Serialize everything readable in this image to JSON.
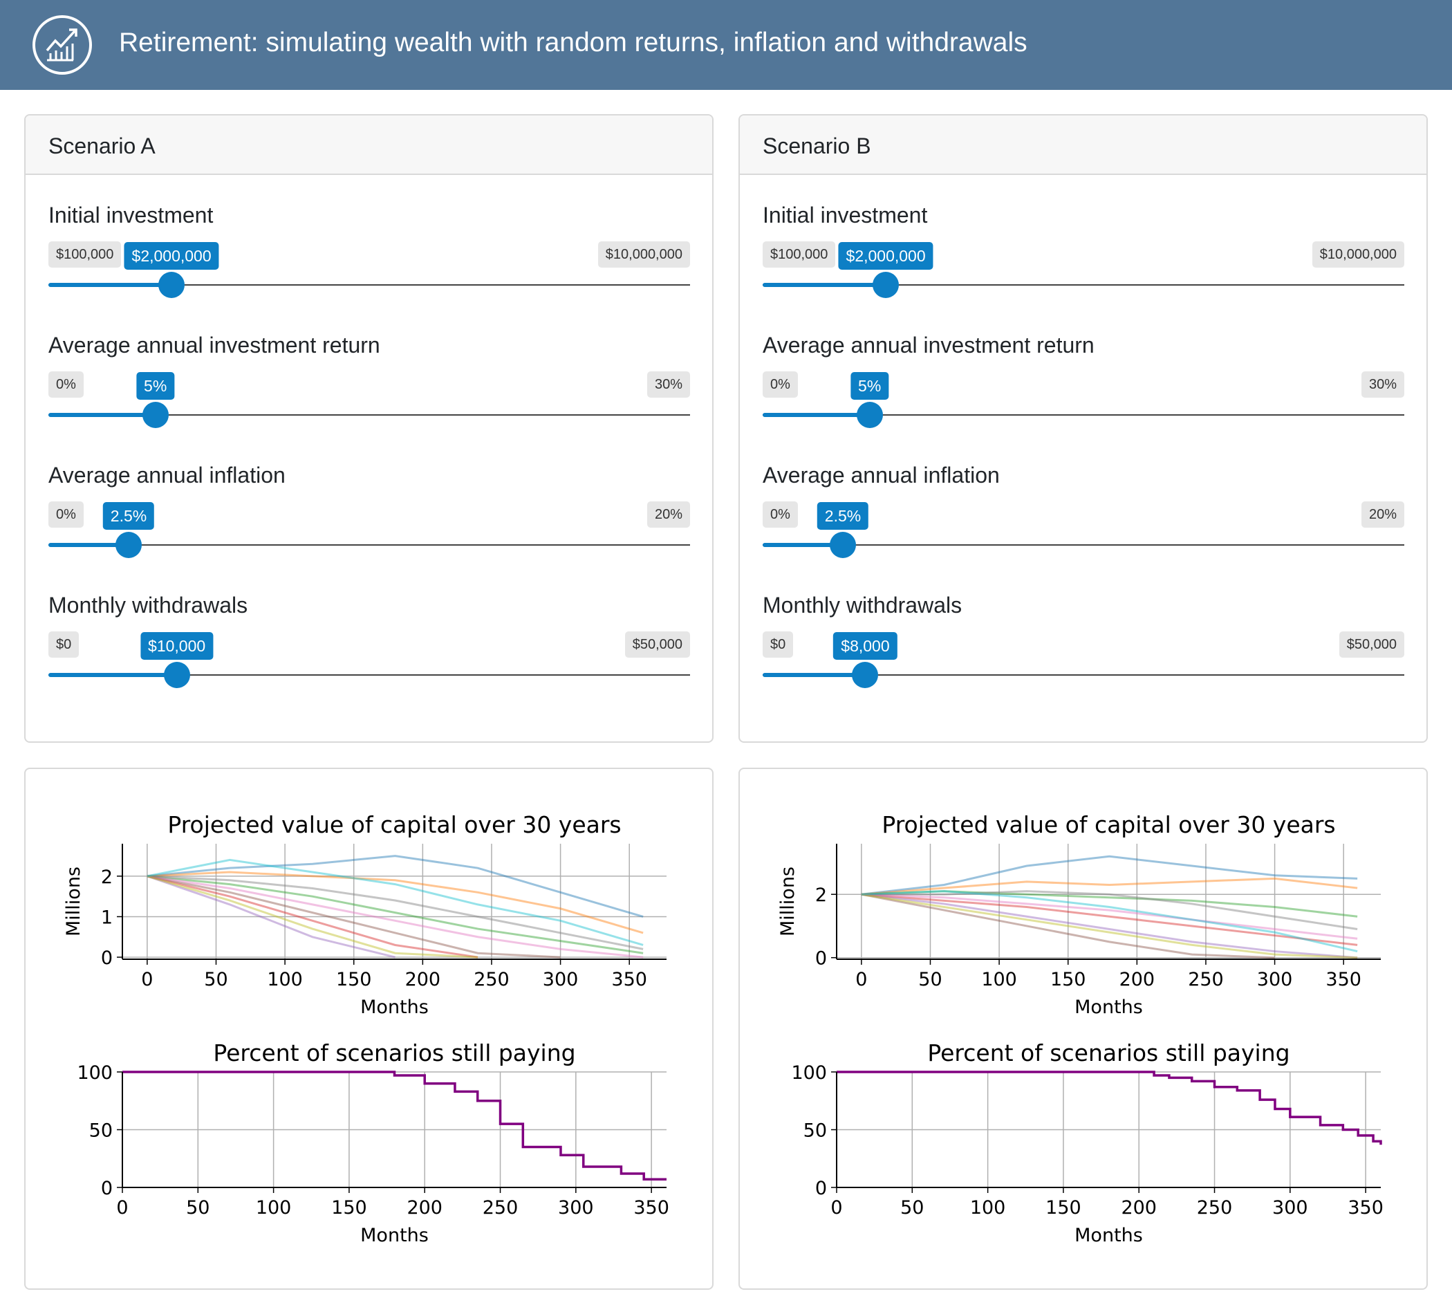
{
  "header": {
    "title": "Retirement: simulating wealth with random returns, inflation and withdrawals",
    "icon": "chart-growth-icon"
  },
  "accent": "#0d7fc5",
  "scenarios": [
    {
      "title": "Scenario A",
      "controls": [
        {
          "label": "Initial investment",
          "min": 100000,
          "max": 10000000,
          "value": 2000000,
          "min_label": "$100,000",
          "max_label": "$10,000,000",
          "value_label": "$2,000,000"
        },
        {
          "label": "Average annual investment return",
          "min": 0,
          "max": 30,
          "value": 5,
          "min_label": "0%",
          "max_label": "30%",
          "value_label": "5%"
        },
        {
          "label": "Average annual inflation",
          "min": 0,
          "max": 20,
          "value": 2.5,
          "min_label": "0%",
          "max_label": "20%",
          "value_label": "2.5%"
        },
        {
          "label": "Monthly withdrawals",
          "min": 0,
          "max": 50000,
          "value": 10000,
          "min_label": "$0",
          "max_label": "$50,000",
          "value_label": "$10,000"
        }
      ]
    },
    {
      "title": "Scenario B",
      "controls": [
        {
          "label": "Initial investment",
          "min": 100000,
          "max": 10000000,
          "value": 2000000,
          "min_label": "$100,000",
          "max_label": "$10,000,000",
          "value_label": "$2,000,000"
        },
        {
          "label": "Average annual investment return",
          "min": 0,
          "max": 30,
          "value": 5,
          "min_label": "0%",
          "max_label": "30%",
          "value_label": "5%"
        },
        {
          "label": "Average annual inflation",
          "min": 0,
          "max": 20,
          "value": 2.5,
          "min_label": "0%",
          "max_label": "20%",
          "value_label": "2.5%"
        },
        {
          "label": "Monthly withdrawals",
          "min": 0,
          "max": 50000,
          "value": 8000,
          "min_label": "$0",
          "max_label": "$50,000",
          "value_label": "$8,000"
        }
      ]
    }
  ],
  "chart_data": [
    {
      "type": "line",
      "panel": "A",
      "title": "Projected value of capital over 30 years",
      "xlabel": "Months",
      "ylabel": "Millions",
      "xlim": [
        -18,
        377
      ],
      "ylim": [
        -0.05,
        2.8
      ],
      "xticks": [
        0,
        50,
        100,
        150,
        200,
        250,
        300,
        350
      ],
      "yticks": [
        0,
        1,
        2
      ],
      "grid": true,
      "x": [
        0,
        60,
        120,
        180,
        240,
        300,
        360
      ],
      "series": [
        [
          2,
          2.2,
          2.3,
          2.5,
          2.2,
          1.6,
          1.0
        ],
        [
          2,
          2.1,
          2.0,
          1.9,
          1.6,
          1.2,
          0.6
        ],
        [
          2,
          1.8,
          1.5,
          1.1,
          0.7,
          0.4,
          0.1
        ],
        [
          2,
          1.5,
          0.9,
          0.3,
          0
        ],
        [
          2,
          1.3,
          0.5,
          0
        ],
        [
          2,
          1.6,
          1.1,
          0.6,
          0.1,
          0
        ],
        [
          2,
          1.7,
          1.3,
          0.9,
          0.5,
          0.2,
          0
        ],
        [
          2,
          1.9,
          1.7,
          1.4,
          1.0,
          0.6,
          0.2
        ],
        [
          2,
          1.4,
          0.7,
          0.1,
          0
        ],
        [
          2,
          2.4,
          2.1,
          1.8,
          1.3,
          0.9,
          0.3
        ]
      ]
    },
    {
      "type": "line",
      "panel": "A",
      "title": "Percent of scenarios still paying",
      "xlabel": "Months",
      "ylabel": "",
      "xlim": [
        0,
        360
      ],
      "ylim": [
        0,
        100
      ],
      "xticks": [
        0,
        50,
        100,
        150,
        200,
        250,
        300,
        350
      ],
      "yticks": [
        0,
        50,
        100
      ],
      "grid": true,
      "color": "#800080",
      "x": [
        0,
        155,
        180,
        200,
        220,
        235,
        250,
        265,
        290,
        305,
        330,
        345,
        360
      ],
      "values": [
        100,
        100,
        97,
        90,
        83,
        75,
        55,
        35,
        28,
        18,
        12,
        7,
        7
      ]
    },
    {
      "type": "line",
      "panel": "B",
      "title": "Projected value of capital over 30 years",
      "xlabel": "Months",
      "ylabel": "Millions",
      "xlim": [
        -18,
        377
      ],
      "ylim": [
        -0.05,
        3.6
      ],
      "xticks": [
        0,
        50,
        100,
        150,
        200,
        250,
        300,
        350
      ],
      "yticks": [
        0,
        2
      ],
      "grid": true,
      "x": [
        0,
        60,
        120,
        180,
        240,
        300,
        360
      ],
      "series": [
        [
          2,
          2.3,
          2.9,
          3.2,
          2.9,
          2.6,
          2.5
        ],
        [
          2,
          2.2,
          2.4,
          2.3,
          2.4,
          2.5,
          2.2
        ],
        [
          2,
          2.1,
          2.0,
          1.9,
          1.8,
          1.6,
          1.3
        ],
        [
          2,
          1.8,
          1.6,
          1.3,
          1.0,
          0.7,
          0.4
        ],
        [
          2,
          1.7,
          1.3,
          0.9,
          0.5,
          0.2,
          0
        ],
        [
          2,
          1.5,
          1.0,
          0.5,
          0.1,
          0
        ],
        [
          2,
          1.9,
          1.7,
          1.5,
          1.2,
          0.9,
          0.6
        ],
        [
          2,
          2.0,
          2.1,
          2.0,
          1.7,
          1.3,
          0.9
        ],
        [
          2,
          1.6,
          1.2,
          0.8,
          0.4,
          0.1,
          0
        ],
        [
          2,
          2.1,
          1.9,
          1.6,
          1.2,
          0.8,
          0.2
        ]
      ]
    },
    {
      "type": "line",
      "panel": "B",
      "title": "Percent of scenarios still paying",
      "xlabel": "Months",
      "ylabel": "",
      "xlim": [
        0,
        360
      ],
      "ylim": [
        0,
        100
      ],
      "xticks": [
        0,
        50,
        100,
        150,
        200,
        250,
        300,
        350
      ],
      "yticks": [
        0,
        50,
        100
      ],
      "grid": true,
      "color": "#800080",
      "x": [
        0,
        200,
        210,
        220,
        235,
        250,
        265,
        280,
        290,
        300,
        310,
        320,
        335,
        345,
        355,
        360
      ],
      "values": [
        100,
        100,
        97,
        95,
        92,
        87,
        84,
        76,
        68,
        61,
        61,
        54,
        50,
        45,
        40,
        37
      ]
    }
  ]
}
